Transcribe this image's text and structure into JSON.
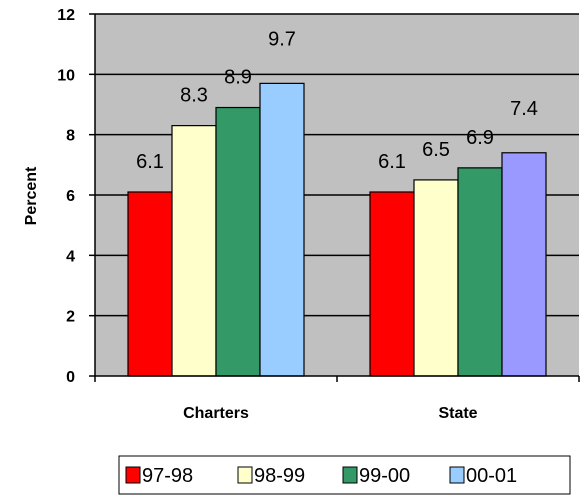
{
  "chart_data": {
    "type": "bar",
    "categories": [
      "Charters",
      "State"
    ],
    "series": [
      {
        "name": "97-98",
        "values": [
          6.1,
          6.1
        ],
        "color": "#ff0000"
      },
      {
        "name": "98-99",
        "values": [
          8.3,
          6.5
        ],
        "color": "#ffffcc"
      },
      {
        "name": "99-00",
        "values": [
          8.9,
          6.9
        ],
        "color": "#339966"
      },
      {
        "name": "00-01",
        "values": [
          9.7,
          7.4
        ],
        "color": "#99ccff",
        "colors": [
          "#99ccff",
          "#9999ff"
        ]
      }
    ],
    "title": "",
    "xlabel": "",
    "ylabel": "Percent",
    "ylim": [
      0,
      12
    ],
    "yticks": [
      "0",
      "2",
      "4",
      "6",
      "8",
      "10",
      "12"
    ],
    "grid": true,
    "plot_background": "#c0c0c0",
    "legend": "bottom-center"
  }
}
